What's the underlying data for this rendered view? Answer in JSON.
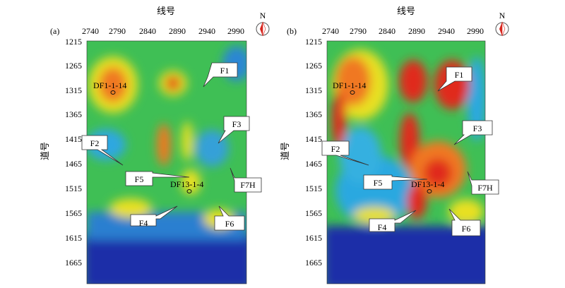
{
  "panels": [
    {
      "id": "a",
      "panel_label": "(a)",
      "x_title": "线号",
      "y_title": "道号",
      "x_ticks": [
        "2740",
        "2790",
        "2840",
        "2890",
        "2940",
        "2990"
      ],
      "y_ticks": [
        "1215",
        "1265",
        "1315",
        "1365",
        "1415",
        "1465",
        "1515",
        "1565",
        "1615",
        "1665"
      ],
      "north": "N",
      "wells": [
        "DF1-1-14",
        "DF13-1-4"
      ],
      "faults": [
        "F1",
        "F2",
        "F3",
        "F4",
        "F5",
        "F6",
        "F7H"
      ]
    },
    {
      "id": "b",
      "panel_label": "(b)",
      "x_title": "线号",
      "y_title": "道号",
      "x_ticks": [
        "2740",
        "2790",
        "2840",
        "2890",
        "2940",
        "2990"
      ],
      "y_ticks": [
        "1215",
        "1265",
        "1315",
        "1365",
        "1415",
        "1465",
        "1515",
        "1565",
        "1615",
        "1665"
      ],
      "north": "N",
      "wells": [
        "DF1-1-14",
        "DF13-1-4"
      ],
      "faults": [
        "F1",
        "F2",
        "F3",
        "F4",
        "F5",
        "F6",
        "F7H"
      ]
    }
  ],
  "colors": {
    "low": "#1a2ea8",
    "mid_low": "#2aa8e0",
    "mid": "#3cbf4a",
    "mid_high": "#f2e21a",
    "high": "#e0201a",
    "compass_red": "#d7261e"
  }
}
